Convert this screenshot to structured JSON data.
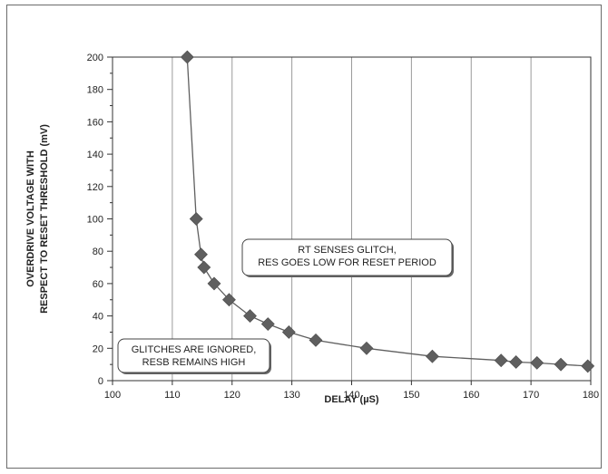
{
  "chart_data": {
    "type": "scatter",
    "xlabel": "DELAY (µS)",
    "ylabel": [
      "OVERDRIVE VOLTAGE WITH",
      "RESPECT TO RESET THRESHOLD (mV)"
    ],
    "xlim": [
      100,
      180
    ],
    "ylim": [
      0,
      200
    ],
    "x_ticks": [
      100,
      110,
      120,
      130,
      140,
      150,
      160,
      170,
      180
    ],
    "y_ticks": [
      0,
      20,
      40,
      60,
      80,
      100,
      120,
      140,
      160,
      180,
      200
    ],
    "grid": "vertical",
    "series": [
      {
        "marker": "diamond",
        "line": true,
        "x": [
          112.5,
          114,
          114.8,
          115.3,
          117,
          119.5,
          123,
          126,
          129.5,
          134,
          142.5,
          153.5,
          165,
          167.5,
          171,
          175,
          179.5
        ],
        "y": [
          200,
          100,
          78,
          70,
          60,
          50,
          40,
          35,
          30,
          25,
          20,
          15,
          12.5,
          11.5,
          11,
          10,
          9
        ]
      }
    ],
    "annotations": [
      {
        "lines": [
          "RT SENSES GLITCH,",
          "RES GOES LOW FOR RESET PERIOD"
        ]
      },
      {
        "lines": [
          "GLITCHES ARE IGNORED,",
          "RESB REMAINS HIGH"
        ]
      }
    ],
    "colors": {
      "series": "#5f5f5f",
      "grid": "#9a9a9a",
      "axis": "#333333"
    }
  }
}
